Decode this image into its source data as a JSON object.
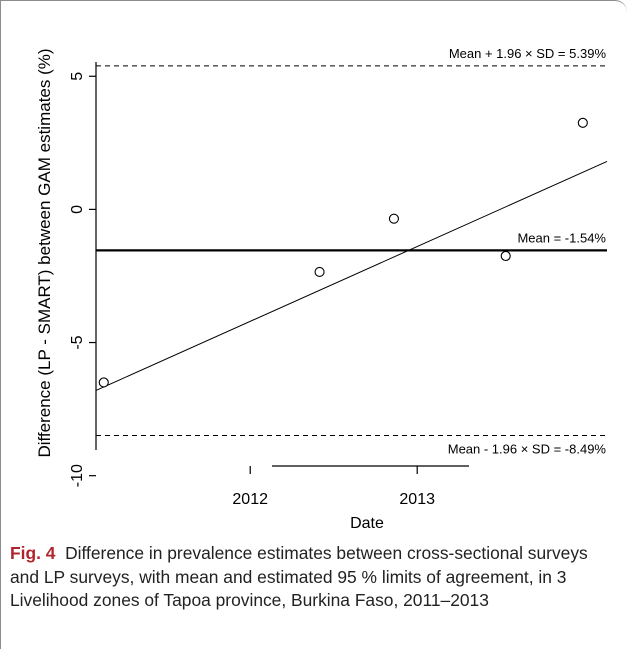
{
  "chart_data": {
    "type": "scatter",
    "xlabel": "Date",
    "ylabel": "Difference (LP - SMART) between GAM estimates (%)",
    "xlim": [
      "2011-01-28",
      "2014-02-21"
    ],
    "ylim": [
      -10.5,
      7.0
    ],
    "x_ticks": [
      {
        "value": "2012-01-01",
        "label": "2012"
      },
      {
        "value": "2013-01-01",
        "label": "2013"
      }
    ],
    "y_ticks": [
      {
        "value": -10,
        "label": "-10"
      },
      {
        "value": -5,
        "label": "-5"
      },
      {
        "value": 0,
        "label": "0"
      },
      {
        "value": 5,
        "label": "5"
      }
    ],
    "points": [
      {
        "x": "2011-02-14",
        "y": -6.5
      },
      {
        "x": "2012-06-01",
        "y": -2.35
      },
      {
        "x": "2012-11-11",
        "y": -0.35
      },
      {
        "x": "2013-07-14",
        "y": -1.75
      },
      {
        "x": "2013-12-30",
        "y": 3.25
      }
    ],
    "regression_line": {
      "from": {
        "x": "2011-01-28",
        "y": -6.8
      },
      "to": {
        "x": "2014-02-21",
        "y": 1.8
      }
    },
    "reference_lines": [
      {
        "y": 5.39,
        "style": "dashed",
        "label": "Mean + 1.96 × SD = 5.39%"
      },
      {
        "y": -1.54,
        "style": "solid",
        "label": "Mean = -1.54%"
      },
      {
        "y": -8.49,
        "style": "dashed",
        "label": "Mean - 1.96 × SD = -8.49%"
      }
    ],
    "grid": false,
    "legend": "none"
  },
  "caption": {
    "label": "Fig. 4",
    "text": "Difference in prevalence estimates between cross-sectional surveys and LP surveys, with mean and estimated 95 % limits of agreement, in 3 Livelihood zones of Tapoa province, Burkina Faso, 2011–2013"
  }
}
